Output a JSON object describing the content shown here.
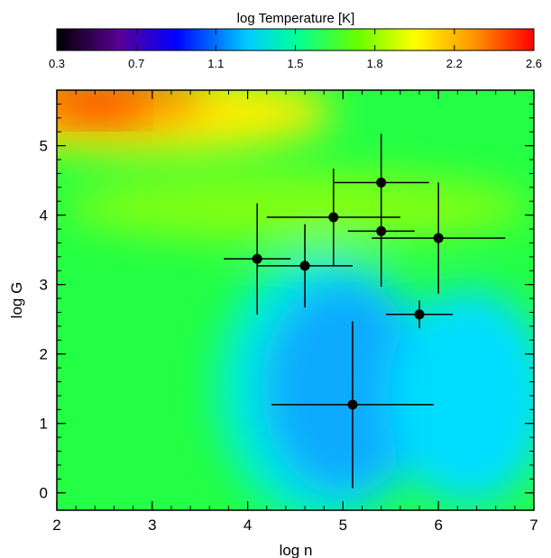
{
  "chart_data": {
    "type": "heatmap",
    "title": "",
    "xlabel": "log n",
    "ylabel": "log G",
    "xlim": [
      2,
      7
    ],
    "ylim": [
      -0.25,
      5.8
    ],
    "x_ticks": [
      "2",
      "3",
      "4",
      "5",
      "6",
      "7"
    ],
    "y_ticks": [
      "0",
      "1",
      "2",
      "3",
      "4",
      "5"
    ],
    "colorbar": {
      "label": "log Temperature [K]",
      "range": [
        0.3,
        2.6
      ],
      "ticks": [
        "0.3",
        "0.7",
        "1.1",
        "1.5",
        "1.8",
        "2.2",
        "2.6"
      ],
      "colormap": "rainbow"
    },
    "points": [
      {
        "x": 4.1,
        "y": 3.37,
        "xerr": 0.35,
        "yerr": 0.8
      },
      {
        "x": 4.6,
        "y": 3.27,
        "xerr": 0.5,
        "yerr": 0.6
      },
      {
        "x": 4.9,
        "y": 3.97,
        "xerr": 0.7,
        "yerr": 0.7
      },
      {
        "x": 5.4,
        "y": 4.47,
        "xerr": 0.5,
        "yerr": 0.7
      },
      {
        "x": 5.4,
        "y": 3.77,
        "xerr": 0.35,
        "yerr": 0.8
      },
      {
        "x": 6.0,
        "y": 3.67,
        "xerr": 0.7,
        "yerr": 0.8
      },
      {
        "x": 5.8,
        "y": 2.57,
        "xerr": 0.35,
        "yerr": 0.2
      },
      {
        "x": 5.1,
        "y": 1.27,
        "xerr": 0.85,
        "yerr": 1.2
      }
    ]
  }
}
